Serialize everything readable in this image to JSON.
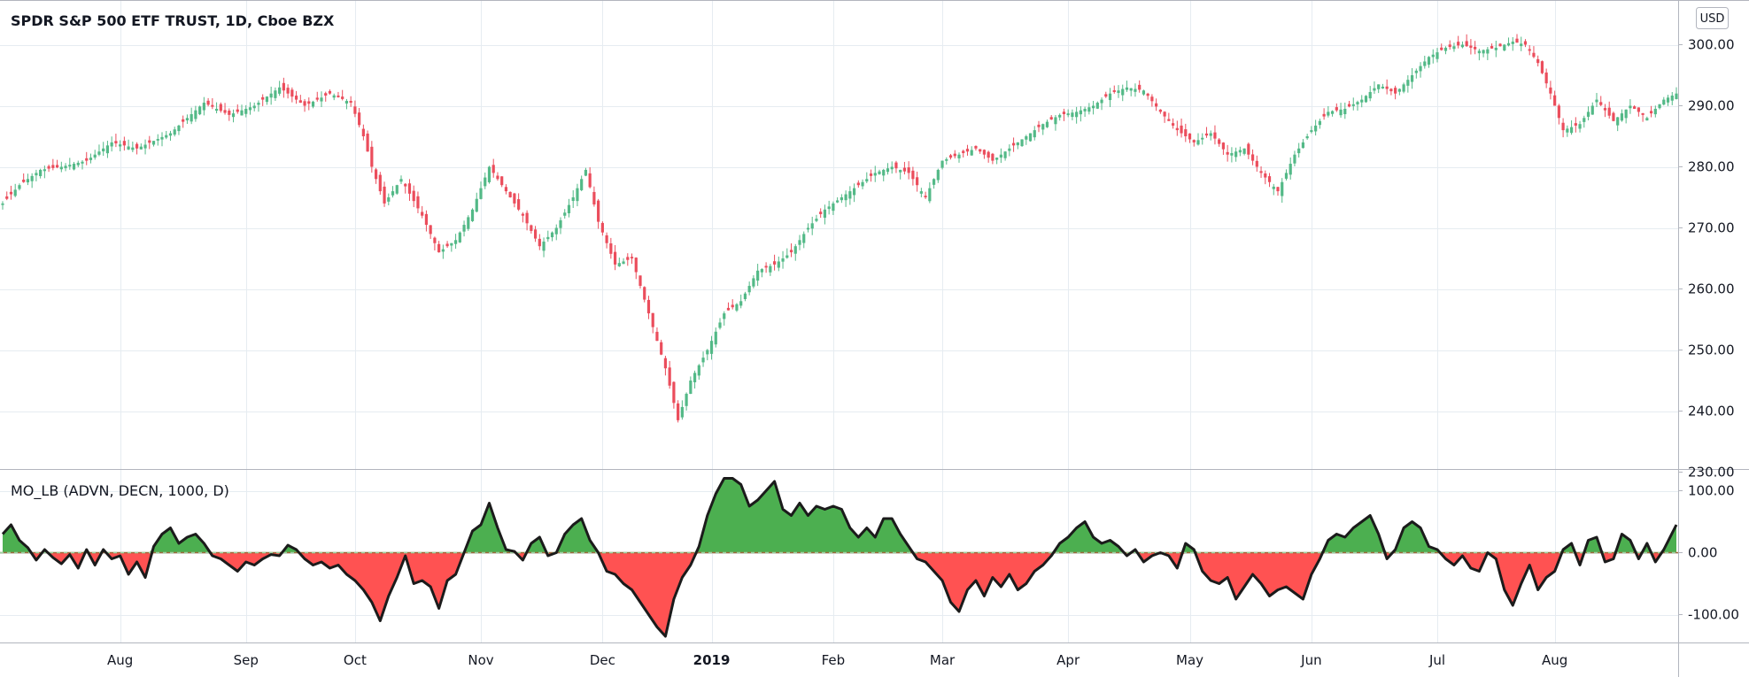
{
  "colors": {
    "up": "#26a69a",
    "down": "#ef5350",
    "candle_up": "#53b987",
    "candle_down": "#eb4d5c",
    "osc_pos": "#4caf50",
    "osc_neg": "#ff5252",
    "osc_line": "#1b1b1b",
    "grid": "#e6ecf1",
    "border": "#b2b5be"
  },
  "header": {
    "title": "SPDR S&P 500 ETF TRUST, 1D, Cboe BZX",
    "indicator_label": "MO_LB (ADVN, DECN, 1000, D)",
    "currency_badge": "USD"
  },
  "chart_data": [
    {
      "type": "candlestick",
      "title": "SPDR S&P 500 ETF TRUST, 1D, Cboe BZX",
      "ylim": [
        230,
        303
      ],
      "y_ticks": [
        "230.00",
        "240.00",
        "250.00",
        "260.00",
        "270.00",
        "280.00",
        "290.00",
        "300.00"
      ],
      "anchors_close": [
        [
          0,
          274
        ],
        [
          4,
          277
        ],
        [
          9,
          279.5
        ],
        [
          14,
          280
        ],
        [
          20,
          281
        ],
        [
          26,
          284
        ],
        [
          32,
          283
        ],
        [
          40,
          285.5
        ],
        [
          48,
          290.5
        ],
        [
          54,
          288.5
        ],
        [
          60,
          290
        ],
        [
          66,
          293
        ],
        [
          72,
          290
        ],
        [
          78,
          292
        ],
        [
          83,
          290.5
        ],
        [
          86,
          285
        ],
        [
          88,
          280
        ],
        [
          91,
          274
        ],
        [
          95,
          278
        ],
        [
          100,
          272
        ],
        [
          104,
          266
        ],
        [
          108,
          268
        ],
        [
          112,
          273
        ],
        [
          116,
          280
        ],
        [
          120,
          276
        ],
        [
          124,
          272
        ],
        [
          128,
          267
        ],
        [
          132,
          270
        ],
        [
          136,
          275
        ],
        [
          139,
          279.5
        ],
        [
          142,
          271
        ],
        [
          146,
          264
        ],
        [
          150,
          265
        ],
        [
          154,
          256
        ],
        [
          158,
          247
        ],
        [
          161,
          238.5
        ],
        [
          164,
          245
        ],
        [
          168,
          250
        ],
        [
          172,
          256
        ],
        [
          176,
          258
        ],
        [
          180,
          263
        ],
        [
          184,
          264
        ],
        [
          188,
          266
        ],
        [
          192,
          270
        ],
        [
          196,
          273
        ],
        [
          200,
          275
        ],
        [
          204,
          277
        ],
        [
          208,
          279
        ],
        [
          212,
          280
        ],
        [
          216,
          279
        ],
        [
          220,
          275
        ],
        [
          224,
          281
        ],
        [
          228,
          282
        ],
        [
          232,
          283
        ],
        [
          236,
          281
        ],
        [
          240,
          283
        ],
        [
          244,
          285
        ],
        [
          248,
          287
        ],
        [
          252,
          288.5
        ],
        [
          256,
          289
        ],
        [
          260,
          290
        ],
        [
          264,
          292
        ],
        [
          268,
          293
        ],
        [
          272,
          292.5
        ],
        [
          276,
          289
        ],
        [
          280,
          286
        ],
        [
          284,
          284
        ],
        [
          288,
          285.5
        ],
        [
          292,
          282
        ],
        [
          296,
          283
        ],
        [
          300,
          279
        ],
        [
          304,
          276
        ],
        [
          308,
          282
        ],
        [
          312,
          286
        ],
        [
          316,
          289
        ],
        [
          320,
          289.5
        ],
        [
          324,
          291
        ],
        [
          328,
          293.5
        ],
        [
          332,
          292
        ],
        [
          336,
          295
        ],
        [
          340,
          298
        ],
        [
          344,
          299.5
        ],
        [
          348,
          300
        ],
        [
          352,
          299
        ],
        [
          356,
          299.5
        ],
        [
          360,
          300.5
        ],
        [
          363,
          300
        ],
        [
          366,
          297
        ],
        [
          369,
          292
        ],
        [
          372,
          286
        ],
        [
          376,
          287
        ],
        [
          380,
          291
        ],
        [
          384,
          287.5
        ],
        [
          388,
          290
        ],
        [
          392,
          288
        ],
        [
          396,
          291
        ],
        [
          399,
          292
        ]
      ]
    },
    {
      "type": "area",
      "title": "MO_LB (ADVN, DECN, 1000, D)",
      "ylim": [
        -145,
        128
      ],
      "y_ticks": [
        "-100.00",
        "0.00",
        "100.00"
      ],
      "zero_line": true,
      "anchors": [
        [
          0,
          30
        ],
        [
          2,
          45
        ],
        [
          4,
          20
        ],
        [
          6,
          8
        ],
        [
          8,
          -12
        ],
        [
          10,
          5
        ],
        [
          12,
          -8
        ],
        [
          14,
          -18
        ],
        [
          16,
          -3
        ],
        [
          18,
          -25
        ],
        [
          20,
          5
        ],
        [
          22,
          -20
        ],
        [
          24,
          5
        ],
        [
          26,
          -10
        ],
        [
          28,
          -5
        ],
        [
          30,
          -35
        ],
        [
          32,
          -15
        ],
        [
          34,
          -40
        ],
        [
          36,
          10
        ],
        [
          38,
          30
        ],
        [
          40,
          40
        ],
        [
          42,
          15
        ],
        [
          44,
          25
        ],
        [
          46,
          30
        ],
        [
          48,
          15
        ],
        [
          50,
          -5
        ],
        [
          52,
          -10
        ],
        [
          54,
          -20
        ],
        [
          56,
          -30
        ],
        [
          58,
          -15
        ],
        [
          60,
          -20
        ],
        [
          62,
          -10
        ],
        [
          64,
          -3
        ],
        [
          66,
          -5
        ],
        [
          68,
          12
        ],
        [
          70,
          5
        ],
        [
          72,
          -10
        ],
        [
          74,
          -20
        ],
        [
          76,
          -15
        ],
        [
          78,
          -25
        ],
        [
          80,
          -20
        ],
        [
          82,
          -35
        ],
        [
          84,
          -45
        ],
        [
          86,
          -60
        ],
        [
          88,
          -80
        ],
        [
          90,
          -110
        ],
        [
          92,
          -70
        ],
        [
          94,
          -40
        ],
        [
          96,
          -5
        ],
        [
          98,
          -50
        ],
        [
          100,
          -45
        ],
        [
          102,
          -55
        ],
        [
          104,
          -90
        ],
        [
          106,
          -45
        ],
        [
          108,
          -35
        ],
        [
          110,
          0
        ],
        [
          112,
          35
        ],
        [
          114,
          45
        ],
        [
          116,
          80
        ],
        [
          118,
          40
        ],
        [
          120,
          5
        ],
        [
          122,
          2
        ],
        [
          124,
          -12
        ],
        [
          126,
          15
        ],
        [
          128,
          25
        ],
        [
          130,
          -5
        ],
        [
          132,
          0
        ],
        [
          134,
          30
        ],
        [
          136,
          45
        ],
        [
          138,
          55
        ],
        [
          140,
          20
        ],
        [
          142,
          0
        ],
        [
          144,
          -30
        ],
        [
          146,
          -35
        ],
        [
          148,
          -50
        ],
        [
          150,
          -60
        ],
        [
          152,
          -80
        ],
        [
          154,
          -100
        ],
        [
          156,
          -120
        ],
        [
          158,
          -135
        ],
        [
          160,
          -75
        ],
        [
          162,
          -40
        ],
        [
          164,
          -20
        ],
        [
          166,
          10
        ],
        [
          168,
          60
        ],
        [
          170,
          95
        ],
        [
          172,
          120
        ],
        [
          174,
          120
        ],
        [
          176,
          110
        ],
        [
          178,
          75
        ],
        [
          180,
          85
        ],
        [
          182,
          100
        ],
        [
          184,
          115
        ],
        [
          186,
          70
        ],
        [
          188,
          60
        ],
        [
          190,
          80
        ],
        [
          192,
          60
        ],
        [
          194,
          75
        ],
        [
          196,
          70
        ],
        [
          198,
          75
        ],
        [
          200,
          70
        ],
        [
          202,
          40
        ],
        [
          204,
          25
        ],
        [
          206,
          40
        ],
        [
          208,
          25
        ],
        [
          210,
          55
        ],
        [
          212,
          55
        ],
        [
          214,
          30
        ],
        [
          216,
          10
        ],
        [
          218,
          -10
        ],
        [
          220,
          -15
        ],
        [
          222,
          -30
        ],
        [
          224,
          -45
        ],
        [
          226,
          -80
        ],
        [
          228,
          -95
        ],
        [
          230,
          -60
        ],
        [
          232,
          -45
        ],
        [
          234,
          -70
        ],
        [
          236,
          -40
        ],
        [
          238,
          -55
        ],
        [
          240,
          -35
        ],
        [
          242,
          -60
        ],
        [
          244,
          -50
        ],
        [
          246,
          -30
        ],
        [
          248,
          -20
        ],
        [
          250,
          -5
        ],
        [
          252,
          15
        ],
        [
          254,
          25
        ],
        [
          256,
          40
        ],
        [
          258,
          50
        ],
        [
          260,
          25
        ],
        [
          262,
          15
        ],
        [
          264,
          20
        ],
        [
          266,
          10
        ],
        [
          268,
          -5
        ],
        [
          270,
          5
        ],
        [
          272,
          -15
        ],
        [
          274,
          -5
        ],
        [
          276,
          0
        ],
        [
          278,
          -5
        ],
        [
          280,
          -25
        ],
        [
          282,
          15
        ],
        [
          284,
          5
        ],
        [
          286,
          -30
        ],
        [
          288,
          -45
        ],
        [
          290,
          -50
        ],
        [
          292,
          -40
        ],
        [
          294,
          -75
        ],
        [
          296,
          -55
        ],
        [
          298,
          -35
        ],
        [
          300,
          -50
        ],
        [
          302,
          -70
        ],
        [
          304,
          -60
        ],
        [
          306,
          -55
        ],
        [
          308,
          -65
        ],
        [
          310,
          -75
        ],
        [
          312,
          -35
        ],
        [
          314,
          -10
        ],
        [
          316,
          20
        ],
        [
          318,
          30
        ],
        [
          320,
          25
        ],
        [
          322,
          40
        ],
        [
          324,
          50
        ],
        [
          326,
          60
        ],
        [
          328,
          30
        ],
        [
          330,
          -10
        ],
        [
          332,
          5
        ],
        [
          334,
          40
        ],
        [
          336,
          50
        ],
        [
          338,
          40
        ],
        [
          340,
          10
        ],
        [
          342,
          5
        ],
        [
          344,
          -10
        ],
        [
          346,
          -20
        ],
        [
          348,
          -5
        ],
        [
          350,
          -25
        ],
        [
          352,
          -30
        ],
        [
          354,
          0
        ],
        [
          356,
          -10
        ],
        [
          358,
          -60
        ],
        [
          360,
          -85
        ],
        [
          362,
          -50
        ],
        [
          364,
          -20
        ],
        [
          366,
          -60
        ],
        [
          368,
          -40
        ],
        [
          370,
          -30
        ],
        [
          372,
          5
        ],
        [
          374,
          15
        ],
        [
          376,
          -20
        ],
        [
          378,
          20
        ],
        [
          380,
          25
        ],
        [
          382,
          -15
        ],
        [
          384,
          -10
        ],
        [
          386,
          30
        ],
        [
          388,
          20
        ],
        [
          390,
          -10
        ],
        [
          392,
          15
        ],
        [
          394,
          -15
        ],
        [
          396,
          5
        ],
        [
          399,
          45
        ]
      ]
    }
  ],
  "x_axis": {
    "labels": [
      {
        "text": "Aug",
        "bold": false
      },
      {
        "text": "Sep",
        "bold": false
      },
      {
        "text": "Oct",
        "bold": false
      },
      {
        "text": "Nov",
        "bold": false
      },
      {
        "text": "Dec",
        "bold": false
      },
      {
        "text": "2019",
        "bold": true
      },
      {
        "text": "Feb",
        "bold": false
      },
      {
        "text": "Mar",
        "bold": false
      },
      {
        "text": "Apr",
        "bold": false
      },
      {
        "text": "May",
        "bold": false
      },
      {
        "text": "Jun",
        "bold": false
      },
      {
        "text": "Jul",
        "bold": false
      },
      {
        "text": "Aug",
        "bold": false
      }
    ]
  }
}
